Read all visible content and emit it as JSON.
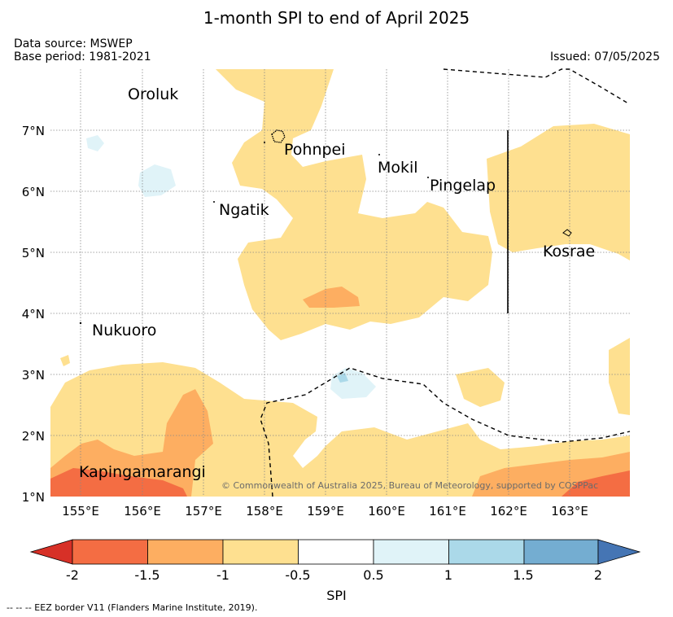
{
  "title": "1-month SPI to end of April 2025",
  "data_source": "Data source: MSWEP",
  "base_period": "Base period: 1981-2021",
  "issued": "Issued: 07/05/2025",
  "copyright": "© Commonwealth of Australia 2025, Bureau of Meteorology, supported by COSPPac",
  "lat_labels": [
    "7°N",
    "6°N",
    "5°N",
    "4°N",
    "3°N",
    "2°N",
    "1°N"
  ],
  "lon_labels": [
    "155°E",
    "156°E",
    "157°E",
    "158°E",
    "159°E",
    "160°E",
    "161°E",
    "162°E",
    "163°E"
  ],
  "places": {
    "oroluk": "Oroluk",
    "pohnpei": "Pohnpei",
    "mokil": "Mokil",
    "pingelap": "Pingelap",
    "ngatik": "Ngatik",
    "kosrae": "Kosrae",
    "nukuoro": "Nukuoro",
    "kapingamarangi": "Kapingamarangi"
  },
  "colorbar": {
    "label": "SPI",
    "ticks": [
      "-2",
      "-1.5",
      "-1",
      "-0.5",
      "0.5",
      "1",
      "1.5",
      "2"
    ],
    "colors": {
      "below_-2": "#d73027",
      "-2_to_-1.5": "#f46d43",
      "-1.5_to_-1": "#fdae61",
      "-1_to_-0.5": "#fee090",
      "-0.5_to_0.5": "#ffffff",
      "0.5_to_1": "#e0f3f8",
      "1_to_1.5": "#abd9e9",
      "1.5_to_2": "#74add1",
      "above_2": "#4575b4"
    }
  },
  "footnote": "--  --  -- EEZ border V11 (Flanders Marine Institute, 2019)."
}
